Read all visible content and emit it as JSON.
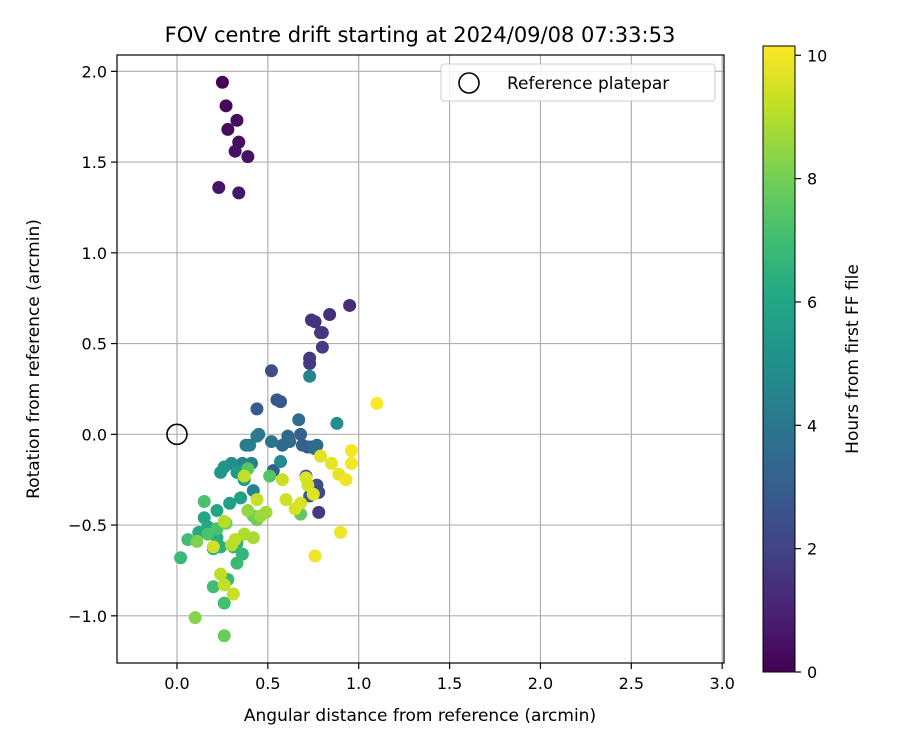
{
  "chart_data": {
    "type": "scatter",
    "title": "FOV centre drift starting at 2024/09/08 07:33:53",
    "xlabel": "Angular distance from reference (arcmin)",
    "ylabel": "Rotation from reference (arcmin)",
    "xlim": [
      -0.33,
      3.01
    ],
    "ylim": [
      -1.26,
      2.09
    ],
    "xticks": [
      "0.0",
      "0.5",
      "1.0",
      "1.5",
      "2.0",
      "2.5",
      "3.0"
    ],
    "yticks": [
      "−1.0",
      "−0.5",
      "0.0",
      "0.5",
      "1.0",
      "1.5",
      "2.0"
    ],
    "grid": true,
    "legend": {
      "placement": "top-right",
      "label": "Reference platepar"
    },
    "reference": {
      "x": 0.0,
      "y": 0.0
    },
    "colorbar": {
      "label": "Hours from first FF file",
      "range": [
        0,
        10.15
      ],
      "ticks": [
        "0",
        "2",
        "4",
        "6",
        "8",
        "10"
      ],
      "colormap": "viridis"
    },
    "series": [
      {
        "points": [
          [
            0.25,
            1.94,
            0.1
          ],
          [
            0.27,
            1.81,
            0.2
          ],
          [
            0.33,
            1.73,
            0.3
          ],
          [
            0.28,
            1.68,
            0.35
          ],
          [
            0.34,
            1.61,
            0.4
          ],
          [
            0.32,
            1.56,
            0.45
          ],
          [
            0.39,
            1.53,
            0.5
          ],
          [
            0.23,
            1.36,
            0.55
          ],
          [
            0.34,
            1.33,
            0.6
          ],
          [
            0.95,
            0.71,
            1.3
          ],
          [
            0.84,
            0.66,
            1.4
          ],
          [
            0.74,
            0.63,
            1.5
          ],
          [
            0.76,
            0.62,
            1.55
          ],
          [
            0.79,
            0.56,
            1.6
          ],
          [
            0.8,
            0.56,
            1.65
          ],
          [
            0.73,
            0.42,
            1.7
          ],
          [
            0.73,
            0.39,
            1.75
          ],
          [
            0.8,
            0.48,
            1.8
          ],
          [
            0.78,
            -0.43,
            1.7
          ],
          [
            0.72,
            -0.07,
            1.9
          ],
          [
            0.52,
            0.35,
            2.4
          ],
          [
            0.55,
            0.19,
            2.7
          ],
          [
            0.57,
            0.18,
            2.8
          ],
          [
            0.44,
            0.14,
            2.9
          ],
          [
            0.71,
            -0.23,
            2.6
          ],
          [
            0.77,
            -0.28,
            2.5
          ],
          [
            0.78,
            -0.32,
            2.2
          ],
          [
            0.73,
            -0.34,
            2.9
          ],
          [
            0.53,
            -0.2,
            3.0
          ],
          [
            0.69,
            -0.06,
            3.1
          ],
          [
            0.74,
            -0.07,
            3.3
          ],
          [
            0.77,
            -0.06,
            3.4
          ],
          [
            0.76,
            -0.08,
            3.6
          ],
          [
            0.68,
            0.0,
            3.2
          ],
          [
            0.67,
            0.08,
            3.7
          ],
          [
            0.61,
            -0.01,
            3.3
          ],
          [
            0.62,
            -0.04,
            3.5
          ],
          [
            0.58,
            -0.06,
            3.4
          ],
          [
            0.52,
            -0.04,
            3.9
          ],
          [
            0.45,
            0.0,
            4.0
          ],
          [
            0.44,
            -0.01,
            4.1
          ],
          [
            0.38,
            -0.06,
            4.2
          ],
          [
            0.4,
            -0.06,
            4.3
          ],
          [
            0.41,
            -0.16,
            4.4
          ],
          [
            0.36,
            -0.16,
            4.6
          ],
          [
            0.42,
            -0.31,
            4.5
          ],
          [
            0.57,
            -0.15,
            4.8
          ],
          [
            0.73,
            0.32,
            4.6
          ],
          [
            0.88,
            0.06,
            4.9
          ],
          [
            0.3,
            -0.16,
            5.0
          ],
          [
            0.35,
            -0.2,
            5.1
          ],
          [
            0.26,
            -0.18,
            5.2
          ],
          [
            0.24,
            -0.21,
            5.3
          ],
          [
            0.33,
            -0.21,
            5.5
          ],
          [
            0.37,
            -0.25,
            5.6
          ],
          [
            0.29,
            -0.38,
            5.7
          ],
          [
            0.35,
            -0.35,
            5.8
          ],
          [
            0.22,
            -0.42,
            5.9
          ],
          [
            0.15,
            -0.46,
            6.0
          ],
          [
            0.17,
            -0.51,
            6.1
          ],
          [
            0.12,
            -0.54,
            6.2
          ],
          [
            0.22,
            -0.57,
            6.3
          ],
          [
            0.2,
            -0.63,
            6.0
          ],
          [
            0.24,
            -0.62,
            6.4
          ],
          [
            0.33,
            -0.6,
            6.5
          ],
          [
            0.31,
            -0.62,
            6.6
          ],
          [
            0.36,
            -0.66,
            6.7
          ],
          [
            0.33,
            -0.71,
            6.8
          ],
          [
            0.28,
            -0.8,
            6.9
          ],
          [
            0.2,
            -0.84,
            7.0
          ],
          [
            0.26,
            -0.93,
            7.1
          ],
          [
            0.02,
            -0.68,
            6.8
          ],
          [
            0.06,
            -0.58,
            7.0
          ],
          [
            0.22,
            -0.52,
            7.2
          ],
          [
            0.17,
            -0.55,
            7.3
          ],
          [
            0.15,
            -0.37,
            7.2
          ],
          [
            0.51,
            -0.23,
            7.4
          ],
          [
            0.39,
            -0.19,
            7.5
          ],
          [
            0.68,
            -0.44,
            7.6
          ],
          [
            0.42,
            -0.45,
            7.8
          ],
          [
            0.44,
            -0.47,
            7.9
          ],
          [
            0.27,
            -0.49,
            8.0
          ],
          [
            0.11,
            -0.59,
            8.2
          ],
          [
            0.26,
            -1.11,
            7.8
          ],
          [
            0.1,
            -1.01,
            8.3
          ],
          [
            0.39,
            -0.42,
            8.5
          ],
          [
            0.46,
            -0.45,
            8.6
          ],
          [
            0.49,
            -0.43,
            8.7
          ],
          [
            0.42,
            -0.57,
            8.8
          ],
          [
            0.37,
            -0.55,
            8.9
          ],
          [
            0.26,
            -0.48,
            9.0
          ],
          [
            0.3,
            -0.61,
            9.0
          ],
          [
            0.32,
            -0.58,
            9.1
          ],
          [
            0.24,
            -0.77,
            9.1
          ],
          [
            0.26,
            -0.83,
            9.2
          ],
          [
            0.31,
            -0.88,
            9.3
          ],
          [
            0.37,
            -0.23,
            9.2
          ],
          [
            0.44,
            -0.36,
            9.3
          ],
          [
            0.2,
            -0.62,
            9.4
          ],
          [
            0.58,
            -0.25,
            9.3
          ],
          [
            0.6,
            -0.36,
            9.4
          ],
          [
            0.65,
            -0.41,
            9.5
          ],
          [
            0.68,
            -0.38,
            9.6
          ],
          [
            0.71,
            -0.24,
            9.6
          ],
          [
            0.72,
            -0.28,
            9.5
          ],
          [
            0.75,
            -0.33,
            9.7
          ],
          [
            0.79,
            -0.12,
            9.7
          ],
          [
            0.85,
            -0.16,
            9.8
          ],
          [
            0.89,
            -0.22,
            9.8
          ],
          [
            0.93,
            -0.25,
            9.9
          ],
          [
            0.96,
            -0.09,
            10.0
          ],
          [
            0.96,
            -0.16,
            10.0
          ],
          [
            0.9,
            -0.54,
            9.9
          ],
          [
            0.76,
            -0.67,
            9.9
          ],
          [
            1.1,
            0.17,
            10.1
          ]
        ]
      }
    ]
  }
}
